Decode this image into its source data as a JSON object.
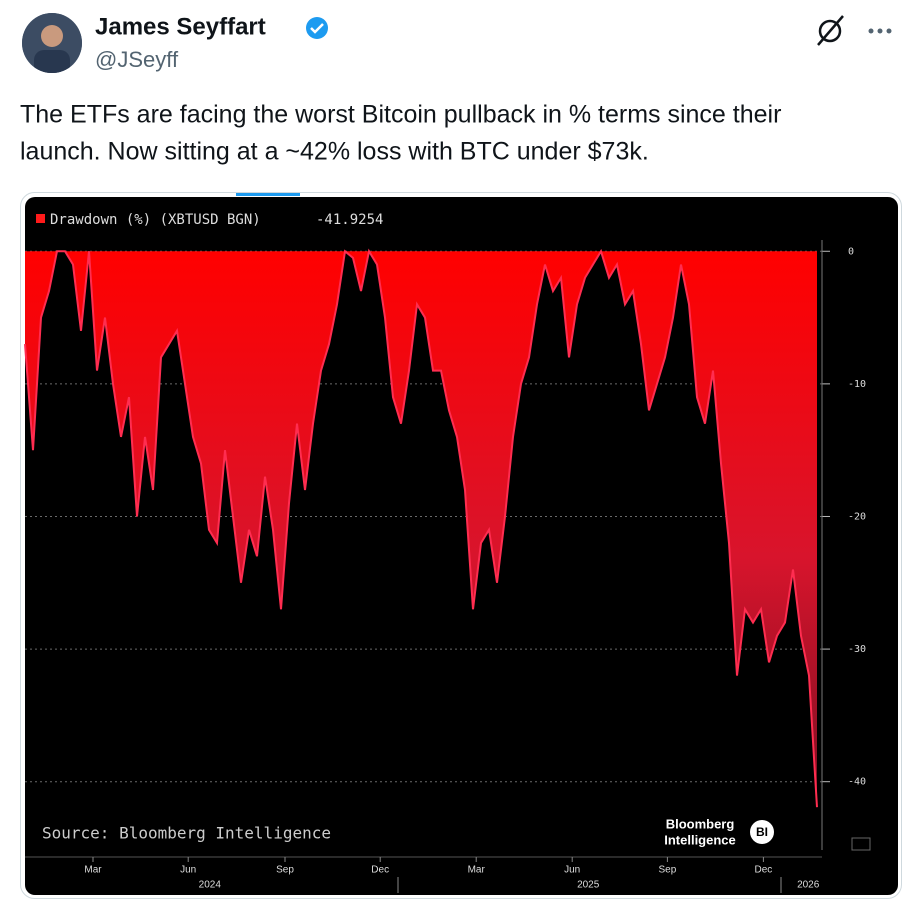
{
  "tweet": {
    "name": "James Seyffart",
    "handle": "@JSeyff",
    "lines": [
      "The ETFs are facing the worst Bitcoin pullback in % terms since their",
      "launch. Now sitting at a ~42% loss with BTC under $73k."
    ]
  },
  "chart_data": {
    "type": "area",
    "series": [
      {
        "name": "Drawdown (%) (XBTUSD BGN)",
        "last_value": "-41.9254",
        "color": "#ff1a1a",
        "values": [
          -7,
          -15,
          -5,
          -3,
          0,
          0,
          -1,
          -6,
          0,
          -9,
          -5,
          -10,
          -14,
          -11,
          -20,
          -14,
          -18,
          -8,
          -7,
          -6,
          -10,
          -14,
          -16,
          -21,
          -22,
          -15,
          -20,
          -25,
          -21,
          -23,
          -17,
          -21,
          -27,
          -19,
          -13,
          -18,
          -13,
          -9,
          -7,
          -4,
          0,
          -0.5,
          -3,
          0,
          -1,
          -5,
          -11,
          -13,
          -9,
          -4,
          -5,
          -9,
          -9,
          -12,
          -14,
          -18,
          -27,
          -22,
          -21,
          -25,
          -20,
          -14,
          -10,
          -8,
          -4,
          -1,
          -3,
          -2,
          -8,
          -4,
          -2,
          -1,
          0,
          -2,
          -1,
          -4,
          -3,
          -7,
          -12,
          -10,
          -8,
          -5,
          -1,
          -4,
          -11,
          -13,
          -9,
          -16,
          -22,
          -32,
          -27,
          -28,
          -27,
          -31,
          -29,
          -28,
          -24,
          -29,
          -32,
          -41.9254
        ]
      }
    ],
    "ylim": [
      -45,
      1
    ],
    "yticks": [
      0,
      -10,
      -20,
      -30,
      -40
    ],
    "grid": true,
    "xticks": [
      {
        "value": 8.5,
        "label": "Mar"
      },
      {
        "value": 20.4,
        "label": "Jun"
      },
      {
        "value": 32.5,
        "label": "Sep"
      },
      {
        "value": 44.4,
        "label": "Dec"
      },
      {
        "value": 56.4,
        "label": "Mar"
      },
      {
        "value": 68.4,
        "label": "Jun"
      },
      {
        "value": 80.3,
        "label": "Sep"
      },
      {
        "value": 92.3,
        "label": "Dec"
      }
    ],
    "year_ticks": [
      {
        "value": 23.1,
        "label": "2024"
      },
      {
        "value": 70.4,
        "label": "2025"
      },
      {
        "value": 97.9,
        "label": "2026"
      }
    ],
    "source": "Source: Bloomberg Intelligence",
    "logo": [
      "Bloomberg",
      "Intelligence",
      "BI"
    ]
  }
}
